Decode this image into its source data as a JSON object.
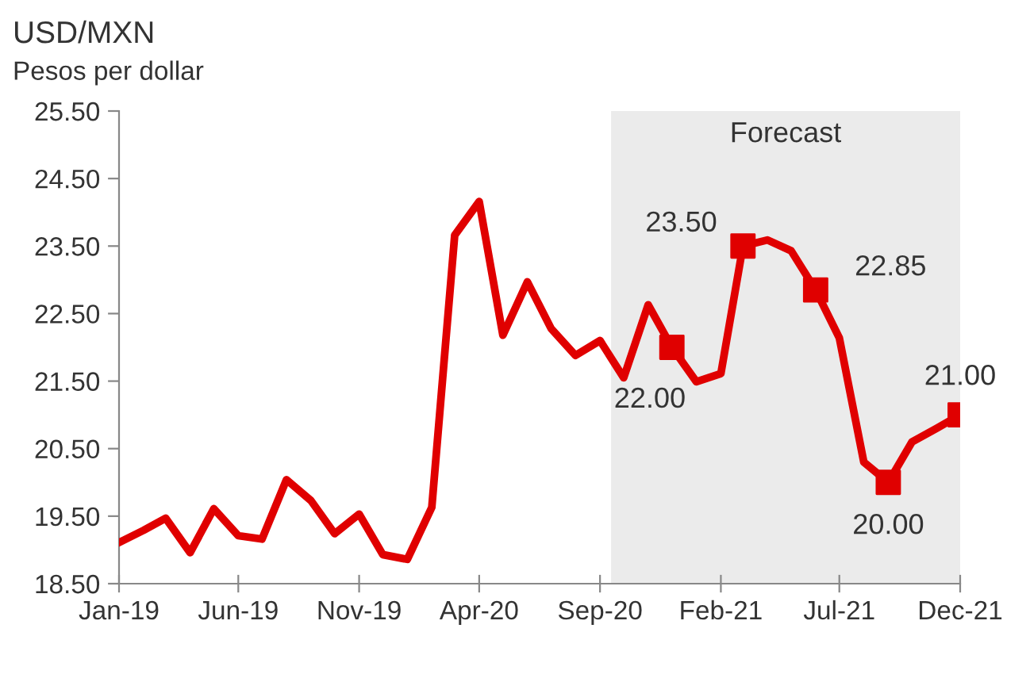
{
  "chart_data": {
    "type": "line",
    "title": "USD/MXN",
    "subtitle": "Pesos per dollar",
    "x": [
      "2019-01",
      "2019-02",
      "2019-03",
      "2019-04",
      "2019-05",
      "2019-06",
      "2019-07",
      "2019-08",
      "2019-09",
      "2019-10",
      "2019-11",
      "2019-12",
      "2020-01",
      "2020-02",
      "2020-03",
      "2020-04",
      "2020-05",
      "2020-06",
      "2020-07",
      "2020-08",
      "2020-09",
      "2020-10",
      "2020-11",
      "2020-12",
      "2021-01",
      "2021-02",
      "2021-03",
      "2021-04",
      "2021-05",
      "2021-06",
      "2021-07",
      "2021-08",
      "2021-09",
      "2021-10",
      "2021-11",
      "2021-12"
    ],
    "series": [
      {
        "color": "#e00000",
        "values": [
          19.11,
          19.29,
          19.47,
          18.96,
          19.61,
          19.21,
          19.16,
          20.04,
          19.73,
          19.24,
          19.53,
          18.93,
          18.86,
          19.63,
          23.66,
          24.16,
          22.18,
          22.97,
          22.28,
          21.88,
          22.1,
          21.55,
          22.63,
          22.0,
          21.49,
          21.61,
          23.5,
          23.59,
          23.43,
          22.85,
          22.14,
          20.3,
          20.0,
          20.6,
          20.8,
          21.0
        ]
      },
      {
        "type": "scatter",
        "marker": "square",
        "color": "#e00000",
        "values": [
          null,
          null,
          null,
          null,
          null,
          null,
          null,
          null,
          null,
          null,
          null,
          null,
          null,
          null,
          null,
          null,
          null,
          null,
          null,
          null,
          null,
          null,
          null,
          22.0,
          null,
          null,
          23.5,
          null,
          null,
          22.85,
          null,
          null,
          20.0,
          null,
          null,
          21.0
        ],
        "value_labels": [
          null,
          null,
          null,
          null,
          null,
          null,
          null,
          null,
          null,
          null,
          null,
          null,
          null,
          null,
          null,
          null,
          null,
          null,
          null,
          null,
          null,
          null,
          null,
          "22.00",
          null,
          null,
          "23.50",
          null,
          null,
          "22.85",
          null,
          null,
          "20.00",
          null,
          null,
          "21.00"
        ]
      }
    ],
    "bands": [
      {
        "axis": "x",
        "from": "2020-09-15",
        "to": "2021-12-01",
        "label": "Forecast",
        "color": "#ebebeb"
      }
    ],
    "xlim": [
      "2019-01",
      "2021-12"
    ],
    "xticks": [
      {
        "value": "2019-01",
        "label": "Jan-19"
      },
      {
        "value": "2019-06",
        "label": "Jun-19"
      },
      {
        "value": "2019-11",
        "label": "Nov-19"
      },
      {
        "value": "2020-04",
        "label": "Apr-20"
      },
      {
        "value": "2020-09",
        "label": "Sep-20"
      },
      {
        "value": "2021-02",
        "label": "Feb-21"
      },
      {
        "value": "2021-07",
        "label": "Jul-21"
      },
      {
        "value": "2021-12",
        "label": "Dec-21"
      }
    ],
    "ylim": [
      18.5,
      25.5
    ],
    "yticks": [
      {
        "value": 18.5,
        "label": "18.50"
      },
      {
        "value": 19.5,
        "label": "19.50"
      },
      {
        "value": 20.5,
        "label": "20.50"
      },
      {
        "value": 21.5,
        "label": "21.50"
      },
      {
        "value": 22.5,
        "label": "22.50"
      },
      {
        "value": 23.5,
        "label": "23.50"
      },
      {
        "value": 24.5,
        "label": "24.50"
      },
      {
        "value": 25.5,
        "label": "25.50"
      }
    ],
    "grid": false,
    "legend": false,
    "line_style": "solid"
  }
}
